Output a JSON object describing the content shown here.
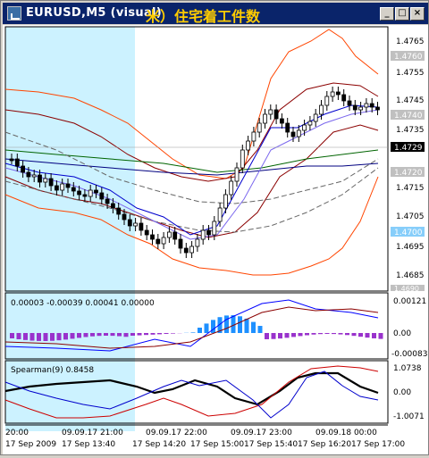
{
  "window": {
    "title": "EURUSD,M5 (visual)",
    "overlay_text": "米）住宅着工件数",
    "minimize_glyph": "_",
    "maximize_glyph": "□",
    "close_glyph": "×"
  },
  "main_panel": {
    "price_labels": [
      "1.4765",
      "1.4755",
      "1.4745",
      "1.4735",
      "1.4715",
      "1.4705",
      "1.4695",
      "1.4685"
    ],
    "marker_labels": {
      "top": "1.4760",
      "mid": "1.4740",
      "current": "1.4729",
      "low": "1.4720",
      "bottom": "1.4700",
      "cut": "1.4690"
    }
  },
  "macd_panel": {
    "header": "0.00003 -0.00039 0.00041 0.00000",
    "labels": [
      "0.00121",
      "0.00",
      "-0.00083"
    ]
  },
  "spearman_panel": {
    "header": "Spearman(9) 0.8458",
    "labels": [
      "1.0738",
      "0.00",
      "-1.0071"
    ]
  },
  "time_axis": {
    "top_row": [
      "20:00",
      "09.09.17 21:00",
      "09.09.17 22:00",
      "09.09.17 23:00",
      "09.09.18 00:00"
    ],
    "bottom_row": [
      "17 Sep 2009",
      "17 Sep 13:40",
      "17 Sep 14:20",
      "17 Sep 15:00",
      "17 Sep 15:40",
      "17 Sep 16:20",
      "17 Sep 17:00"
    ]
  },
  "colors": {
    "highlight": "#ccf2ff",
    "bollinger": "#ff4500",
    "ma_fast": "#0000cd",
    "ma_slow": "#8b0000",
    "ma_green": "#006400",
    "ma_navy": "#000080",
    "macd_pos": "#1e90ff",
    "macd_neg": "#9932cc",
    "current_price_bg": "#000000",
    "marker_bg": "#c0c0c0",
    "marker_blue_bg": "#87cefa"
  }
}
